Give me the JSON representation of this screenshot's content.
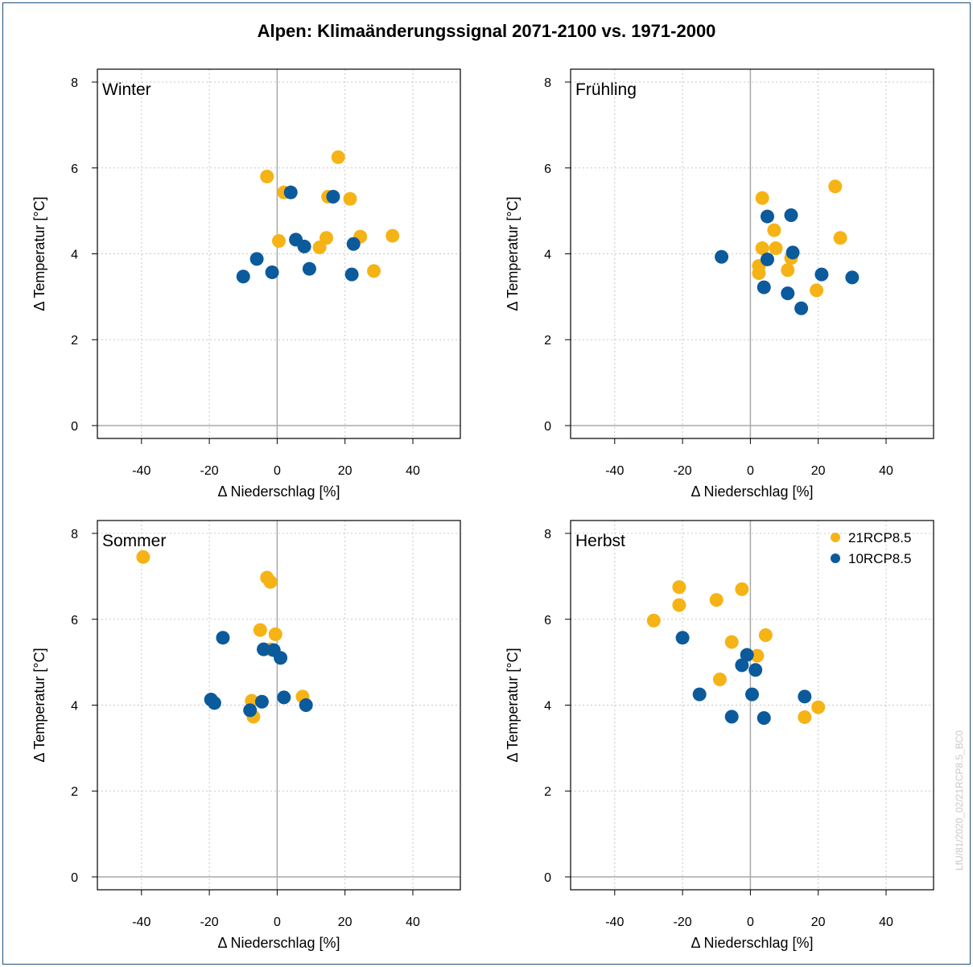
{
  "title": "Alpen: Klimaänderungssignal 2071-2100 vs. 1971-2000",
  "watermark": "LfU/81/2020_02/21RCP8.5_BC0",
  "colors": {
    "rcp21": "#f5b316",
    "rcp10": "#0b5a9c"
  },
  "chart_data": [
    {
      "type": "scatter",
      "panel_label": "Winter",
      "xlabel": "Δ Niederschlag [%]",
      "ylabel": "Δ Temperatur [°C]",
      "xlim": [
        -53,
        54
      ],
      "ylim": [
        -0.3,
        8.3
      ],
      "xticks": [
        -40,
        -20,
        0,
        20,
        40
      ],
      "yticks": [
        0,
        2,
        4,
        6,
        8
      ],
      "grid": true,
      "series": [
        {
          "name": "21RCP8.5",
          "color": "#f5b316",
          "points": [
            [
              -3,
              5.8
            ],
            [
              2,
              5.43
            ],
            [
              18,
              6.25
            ],
            [
              15,
              5.33
            ],
            [
              21.5,
              5.28
            ],
            [
              0.5,
              4.3
            ],
            [
              14.5,
              4.37
            ],
            [
              12.5,
              4.15
            ],
            [
              24.5,
              4.4
            ],
            [
              34,
              4.42
            ],
            [
              28.5,
              3.6
            ]
          ]
        },
        {
          "name": "10RCP8.5",
          "color": "#0b5a9c",
          "points": [
            [
              4,
              5.43
            ],
            [
              16.5,
              5.33
            ],
            [
              -6,
              3.88
            ],
            [
              5.5,
              4.33
            ],
            [
              8,
              4.17
            ],
            [
              22.5,
              4.23
            ],
            [
              -10,
              3.47
            ],
            [
              -1.5,
              3.57
            ],
            [
              9.5,
              3.65
            ],
            [
              22,
              3.52
            ]
          ]
        }
      ]
    },
    {
      "type": "scatter",
      "panel_label": "Frühling",
      "xlabel": "Δ Niederschlag [%]",
      "ylabel": "Δ Temperatur [°C]",
      "xlim": [
        -53,
        54
      ],
      "ylim": [
        -0.3,
        8.3
      ],
      "xticks": [
        -40,
        -20,
        0,
        20,
        40
      ],
      "yticks": [
        0,
        2,
        4,
        6,
        8
      ],
      "grid": true,
      "series": [
        {
          "name": "21RCP8.5",
          "color": "#f5b316",
          "points": [
            [
              3.5,
              5.3
            ],
            [
              25,
              5.57
            ],
            [
              7,
              4.55
            ],
            [
              3.5,
              4.13
            ],
            [
              7.5,
              4.13
            ],
            [
              26.5,
              4.37
            ],
            [
              2.5,
              3.72
            ],
            [
              2.5,
              3.55
            ],
            [
              12,
              3.9
            ],
            [
              11,
              3.62
            ],
            [
              19.5,
              3.15
            ]
          ]
        },
        {
          "name": "10RCP8.5",
          "color": "#0b5a9c",
          "points": [
            [
              5,
              4.87
            ],
            [
              12,
              4.9
            ],
            [
              -8.5,
              3.93
            ],
            [
              5,
              3.87
            ],
            [
              12.5,
              4.03
            ],
            [
              4,
              3.22
            ],
            [
              11,
              3.08
            ],
            [
              21,
              3.52
            ],
            [
              30,
              3.45
            ],
            [
              15,
              2.73
            ]
          ]
        }
      ]
    },
    {
      "type": "scatter",
      "panel_label": "Sommer",
      "xlabel": "Δ Niederschlag [%]",
      "ylabel": "Δ Temperatur [°C]",
      "xlim": [
        -53,
        54
      ],
      "ylim": [
        -0.3,
        8.3
      ],
      "xticks": [
        -40,
        -20,
        0,
        20,
        40
      ],
      "yticks": [
        0,
        2,
        4,
        6,
        8
      ],
      "grid": true,
      "series": [
        {
          "name": "21RCP8.5",
          "color": "#f5b316",
          "points": [
            [
              -39.5,
              7.45
            ],
            [
              -3,
              6.97
            ],
            [
              -2,
              6.87
            ],
            [
              -5,
              5.75
            ],
            [
              -0.5,
              5.65
            ],
            [
              -2,
              5.3
            ],
            [
              -7.5,
              4.1
            ],
            [
              -7,
              3.73
            ],
            [
              7.5,
              4.2
            ]
          ]
        },
        {
          "name": "10RCP8.5",
          "color": "#0b5a9c",
          "points": [
            [
              -16,
              5.57
            ],
            [
              -4,
              5.3
            ],
            [
              -1,
              5.28
            ],
            [
              1,
              5.1
            ],
            [
              -19.5,
              4.13
            ],
            [
              -18.5,
              4.05
            ],
            [
              -4.5,
              4.08
            ],
            [
              -8,
              3.88
            ],
            [
              2,
              4.18
            ],
            [
              8.5,
              4.0
            ]
          ]
        }
      ]
    },
    {
      "type": "scatter",
      "panel_label": "Herbst",
      "xlabel": "Δ Niederschlag [%]",
      "ylabel": "Δ Temperatur [°C]",
      "xlim": [
        -53,
        54
      ],
      "ylim": [
        -0.3,
        8.3
      ],
      "xticks": [
        -40,
        -20,
        0,
        20,
        40
      ],
      "yticks": [
        0,
        2,
        4,
        6,
        8
      ],
      "grid": true,
      "legend": {
        "placement": "top-right",
        "entries": [
          {
            "label": "21RCP8.5",
            "color": "#f5b316"
          },
          {
            "label": "10RCP8.5",
            "color": "#0b5a9c"
          }
        ]
      },
      "series": [
        {
          "name": "21RCP8.5",
          "color": "#f5b316",
          "points": [
            [
              -21,
              6.75
            ],
            [
              -21,
              6.33
            ],
            [
              -10,
              6.45
            ],
            [
              -2.5,
              6.7
            ],
            [
              -28.5,
              5.97
            ],
            [
              -5.5,
              5.47
            ],
            [
              4.5,
              5.63
            ],
            [
              2,
              5.15
            ],
            [
              -9,
              4.6
            ],
            [
              16,
              3.72
            ],
            [
              20,
              3.95
            ]
          ]
        },
        {
          "name": "10RCP8.5",
          "color": "#0b5a9c",
          "points": [
            [
              -20,
              5.57
            ],
            [
              -1,
              5.17
            ],
            [
              -2.5,
              4.93
            ],
            [
              1.5,
              4.82
            ],
            [
              -15,
              4.25
            ],
            [
              0.5,
              4.25
            ],
            [
              16,
              4.2
            ],
            [
              -5.5,
              3.73
            ],
            [
              4,
              3.7
            ]
          ]
        }
      ]
    }
  ]
}
